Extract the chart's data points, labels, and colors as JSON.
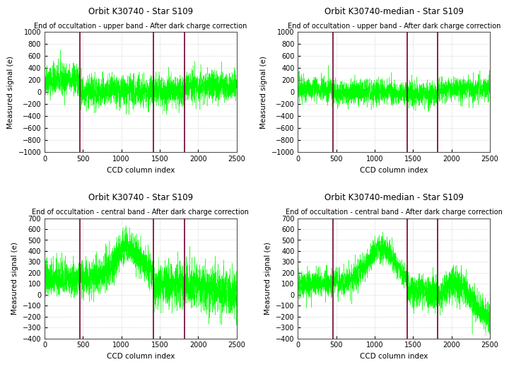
{
  "plots": [
    {
      "title": "Orbit K30740 - Star S109",
      "subtitle": "End of occultation - upper band - After dark charge correction",
      "ylim": [
        -1000,
        1000
      ],
      "yticks": [
        -1000,
        -800,
        -600,
        -400,
        -200,
        0,
        200,
        400,
        600,
        800,
        1000
      ],
      "band": "upper"
    },
    {
      "title": "Orbit K30740-median - Star S109",
      "subtitle": "End of occultation - upper band - After dark charge correction",
      "ylim": [
        -1000,
        1000
      ],
      "yticks": [
        -1000,
        -800,
        -600,
        -400,
        -200,
        0,
        200,
        400,
        600,
        800,
        1000
      ],
      "band": "upper_median"
    },
    {
      "title": "Orbit K30740 - Star S109",
      "subtitle": "End of occultation - central band - After dark charge correction",
      "ylim": [
        -400,
        700
      ],
      "yticks": [
        -400,
        -300,
        -200,
        -100,
        0,
        100,
        200,
        300,
        400,
        500,
        600,
        700
      ],
      "band": "central"
    },
    {
      "title": "Orbit K30740-median - Star S109",
      "subtitle": "End of occultation - central band - After dark charge correction",
      "ylim": [
        -400,
        700
      ],
      "yticks": [
        -400,
        -300,
        -200,
        -100,
        0,
        100,
        200,
        300,
        400,
        500,
        600,
        700
      ],
      "band": "central_median"
    }
  ],
  "vlines": [
    460,
    1420,
    1820
  ],
  "xlim": [
    0,
    2500
  ],
  "xticks": [
    0,
    500,
    1000,
    1500,
    2000,
    2500
  ],
  "xlabel": "CCD column index",
  "ylabel": "Measured signal (e)",
  "n_points": 2500,
  "green_color": "#00FF00",
  "vline_color": "#700030",
  "background_color": "#ffffff",
  "grid_color": "#aaaaaa",
  "title_fontsize": 8.5,
  "subtitle_fontsize": 7.0,
  "label_fontsize": 7.5,
  "tick_fontsize": 7
}
